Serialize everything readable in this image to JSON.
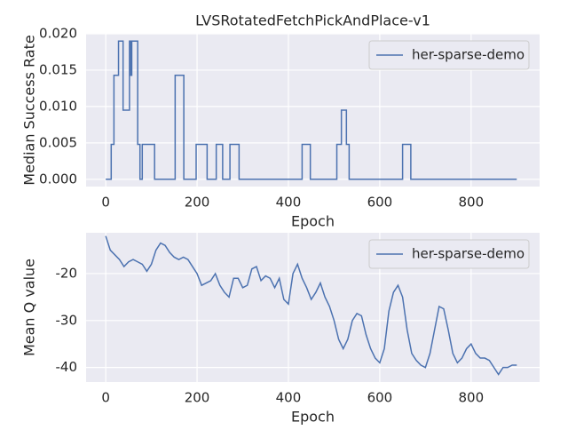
{
  "chart_data": [
    {
      "type": "line",
      "title": "LVSRotatedFetchPickAndPlace-v1",
      "x_label": "Epoch",
      "y_label": "Median Success Rate",
      "x": [
        0,
        12,
        12,
        18,
        18,
        28,
        28,
        38,
        38,
        52,
        52,
        55,
        55,
        57,
        57,
        70,
        70,
        75,
        75,
        80,
        80,
        107,
        107,
        152,
        152,
        171,
        171,
        198,
        198,
        222,
        222,
        242,
        242,
        256,
        256,
        272,
        272,
        292,
        292,
        430,
        430,
        448,
        448,
        506,
        506,
        516,
        516,
        527,
        527,
        533,
        533,
        650,
        650,
        668,
        668,
        900
      ],
      "series": [
        {
          "name": "her-sparse-demo",
          "color": "#4c72b0",
          "values": [
            0,
            0,
            0.0048,
            0.0048,
            0.0143,
            0.0143,
            0.019,
            0.019,
            0.0095,
            0.0095,
            0.019,
            0.019,
            0.0143,
            0.0143,
            0.019,
            0.019,
            0.0048,
            0.0048,
            0,
            0,
            0.0048,
            0.0048,
            0,
            0,
            0.0143,
            0.0143,
            0,
            0,
            0.0048,
            0.0048,
            0,
            0,
            0.0048,
            0.0048,
            0,
            0,
            0.0048,
            0.0048,
            0,
            0,
            0.0048,
            0.0048,
            0,
            0,
            0.0048,
            0.0048,
            0.0095,
            0.0095,
            0.0048,
            0.0048,
            0,
            0,
            0.0048,
            0.0048,
            0,
            0
          ]
        }
      ],
      "xlim": [
        -43,
        950
      ],
      "ylim": [
        -0.001,
        0.02
      ],
      "xticks": [
        0,
        200,
        400,
        600,
        800
      ],
      "yticks": [
        {
          "value": 0,
          "label": "0.000"
        },
        {
          "value": 0.005,
          "label": "0.005"
        },
        {
          "value": 0.01,
          "label": "0.010"
        },
        {
          "value": 0.015,
          "label": "0.015"
        },
        {
          "value": 0.02,
          "label": "0.020"
        }
      ],
      "grid": true,
      "legend": "upper right"
    },
    {
      "type": "line",
      "x_label": "Epoch",
      "y_label": "Mean Q value",
      "x": [
        0,
        10,
        20,
        30,
        40,
        50,
        60,
        70,
        80,
        90,
        100,
        110,
        120,
        130,
        140,
        150,
        160,
        170,
        180,
        190,
        200,
        210,
        220,
        230,
        240,
        250,
        260,
        270,
        280,
        290,
        300,
        310,
        320,
        330,
        340,
        350,
        360,
        370,
        380,
        390,
        400,
        410,
        420,
        430,
        440,
        450,
        460,
        470,
        480,
        490,
        500,
        510,
        520,
        530,
        540,
        550,
        560,
        570,
        580,
        590,
        600,
        610,
        620,
        630,
        640,
        650,
        660,
        670,
        680,
        690,
        700,
        710,
        720,
        730,
        740,
        750,
        760,
        770,
        780,
        790,
        800,
        810,
        820,
        830,
        840,
        850,
        860,
        870,
        880,
        890,
        900
      ],
      "series": [
        {
          "name": "her-sparse-demo",
          "color": "#4c72b0",
          "values": [
            -12,
            -15,
            -16,
            -17,
            -18.5,
            -17.5,
            -17,
            -17.5,
            -18,
            -19.5,
            -18,
            -15,
            -13.5,
            -14,
            -15.5,
            -16.5,
            -17,
            -16.5,
            -17,
            -18.5,
            -20,
            -22.5,
            -22,
            -21.5,
            -20,
            -22.5,
            -24,
            -25,
            -21,
            -21,
            -23,
            -22.5,
            -19,
            -18.5,
            -21.5,
            -20.5,
            -21,
            -23,
            -21,
            -25.5,
            -26.5,
            -20,
            -18,
            -21,
            -23,
            -25.5,
            -24,
            -22,
            -25,
            -27,
            -30,
            -34,
            -36,
            -34,
            -30,
            -28.5,
            -29,
            -33,
            -36,
            -38,
            -39,
            -36,
            -28,
            -24,
            -22.5,
            -25,
            -32,
            -37,
            -38.5,
            -39.5,
            -40,
            -37,
            -32,
            -27,
            -27.5,
            -32,
            -37,
            -39,
            -38,
            -36,
            -35,
            -37,
            -38,
            -38,
            -38.5,
            -40,
            -41.5,
            -40,
            -40,
            -39.5,
            -39.5
          ]
        }
      ],
      "xlim": [
        -43,
        950
      ],
      "ylim": [
        -43.1,
        -11.3
      ],
      "xticks": [
        0,
        200,
        400,
        600,
        800
      ],
      "yticks": [
        -20,
        -30,
        -40
      ],
      "grid": true,
      "legend": "upper right"
    }
  ]
}
